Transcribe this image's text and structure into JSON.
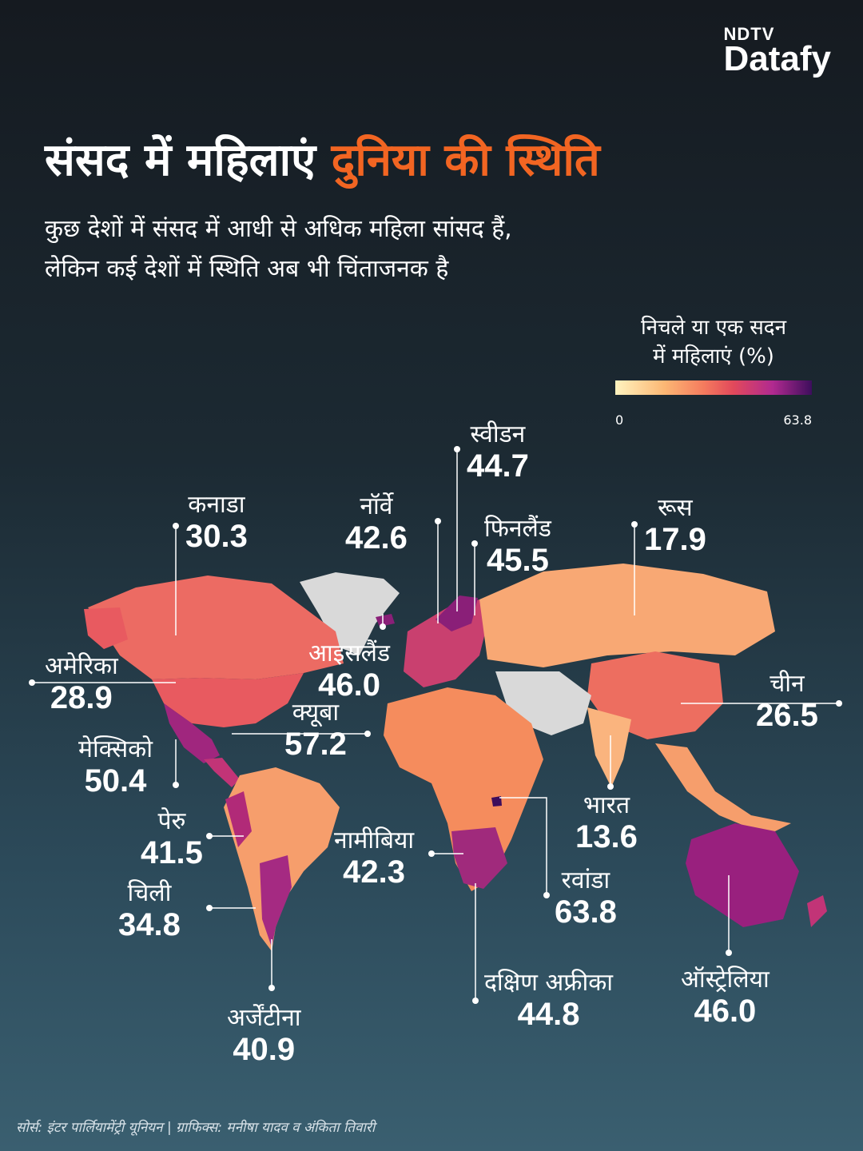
{
  "brand": {
    "ndtv": "NDTV",
    "datafy": "Datafy"
  },
  "title": {
    "main": "संसद में महिलाएं",
    "accent": "दुनिया की स्थिति"
  },
  "subtitle": {
    "line1": "कुछ देशों में संसद में आधी से अधिक महिला सांसद हैं,",
    "line2": "लेकिन कई देशों में स्थिति अब भी चिंताजनक है"
  },
  "legend": {
    "title_line1": "निचले या एक सदन",
    "title_line2": "में महिलाएं (%)",
    "min": "0",
    "max": "63.8"
  },
  "countries": [
    {
      "name": "कनाडा",
      "value": "30.3"
    },
    {
      "name": "अमेरिका",
      "value": "28.9"
    },
    {
      "name": "मेक्सिको",
      "value": "50.4"
    },
    {
      "name": "क्यूबा",
      "value": "57.2"
    },
    {
      "name": "पेरु",
      "value": "41.5"
    },
    {
      "name": "चिली",
      "value": "34.8"
    },
    {
      "name": "अर्जेंटीना",
      "value": "40.9"
    },
    {
      "name": "नॉर्वे",
      "value": "42.6"
    },
    {
      "name": "स्वीडन",
      "value": "44.7"
    },
    {
      "name": "फिनलैंड",
      "value": "45.5"
    },
    {
      "name": "आइसलैंड",
      "value": "46.0"
    },
    {
      "name": "नामीबिया",
      "value": "42.3"
    },
    {
      "name": "दक्षिण अफ्रीका",
      "value": "44.8"
    },
    {
      "name": "रवांडा",
      "value": "63.8"
    },
    {
      "name": "रूस",
      "value": "17.9"
    },
    {
      "name": "चीन",
      "value": "26.5"
    },
    {
      "name": "भारत",
      "value": "13.6"
    },
    {
      "name": "ऑस्ट्रेलिया",
      "value": "46.0"
    }
  ],
  "colors": {
    "accent": "#f26522",
    "low": "#fff3bf",
    "mid": "#f47b5e",
    "high": "#3d0e5c",
    "nodata": "#d9d9d9"
  },
  "footer": "सोर्स: इंटर पार्लियामेंट्री यूनियन | ग्राफिक्स:  मनीषा यादव व अंकिता तिवारी"
}
